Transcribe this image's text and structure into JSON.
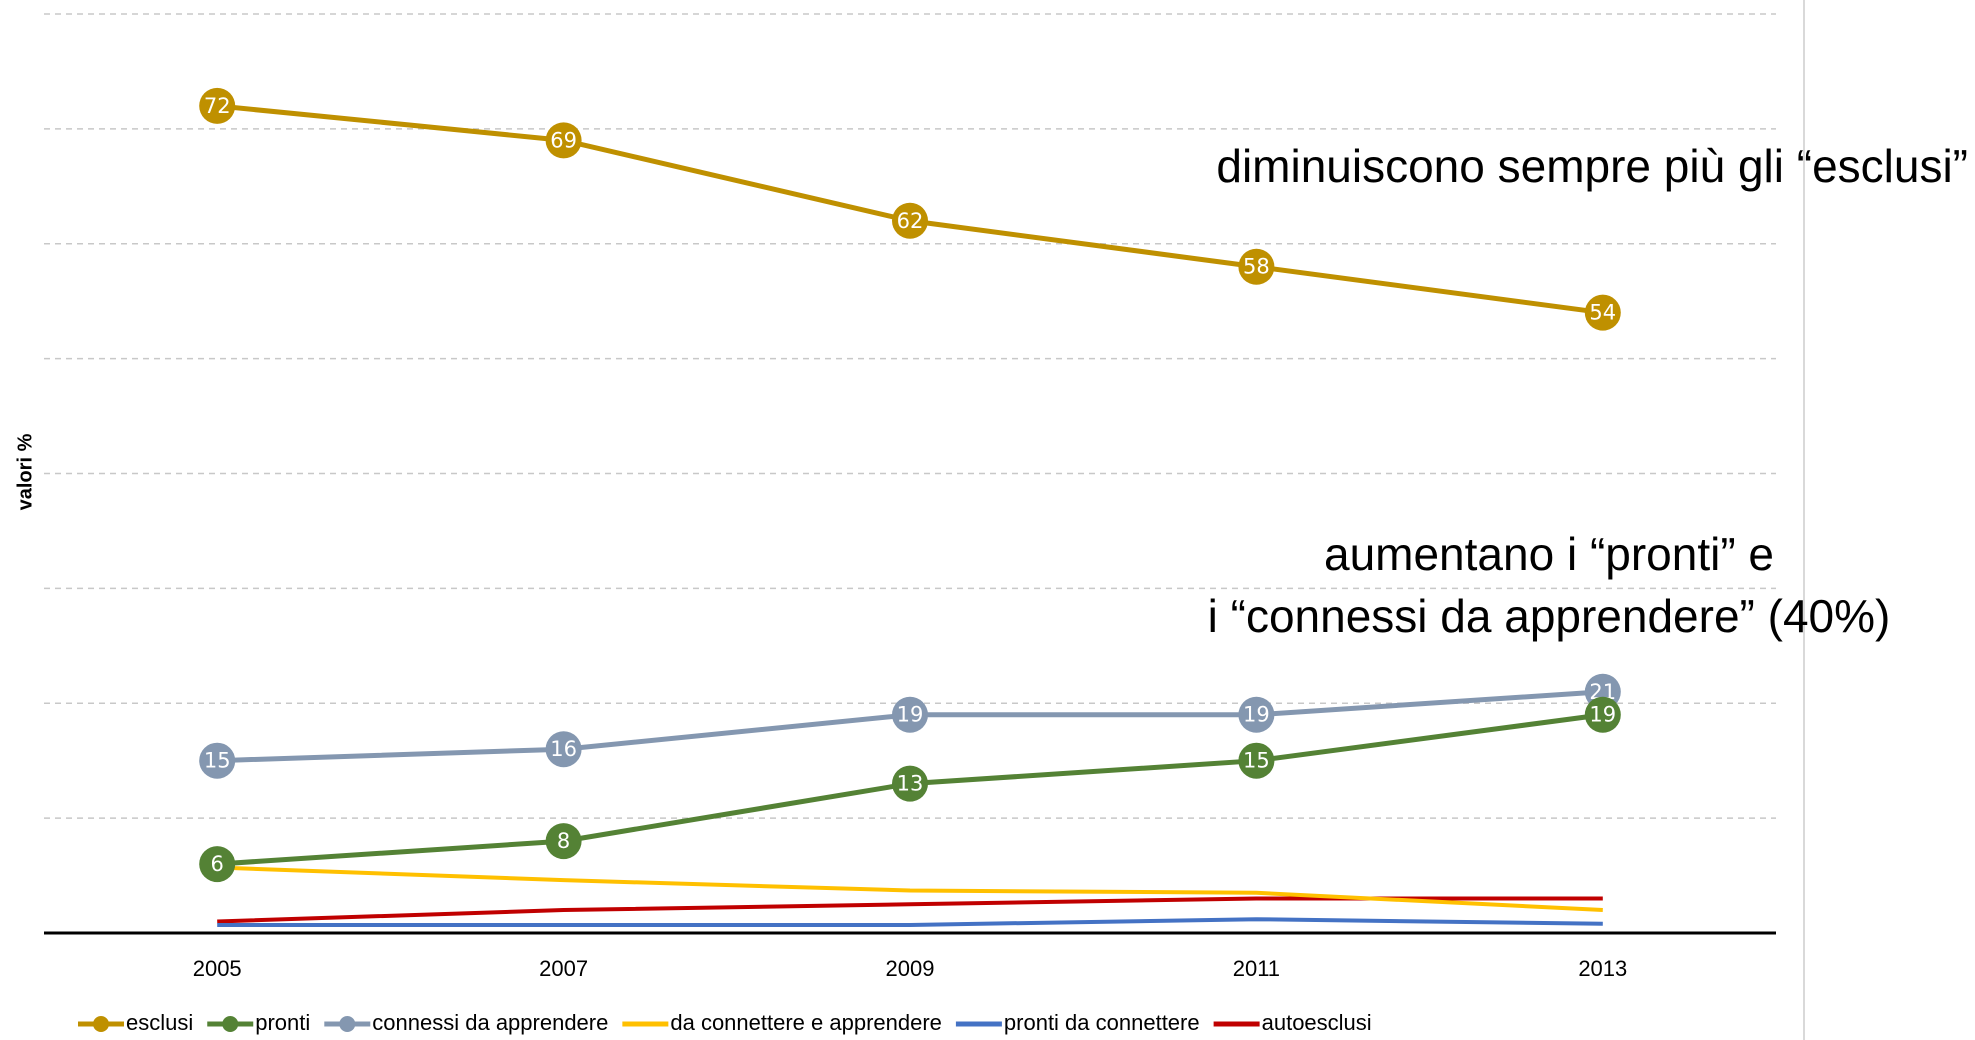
{
  "chart_data": {
    "type": "line",
    "y_label": "valori %",
    "x": [
      2005,
      2007,
      2009,
      2011,
      2013
    ],
    "xlim": [
      2004,
      2014
    ],
    "xticks": [
      2005,
      2007,
      2009,
      2011,
      2013
    ],
    "ylim": [
      0,
      80
    ],
    "yticks": [
      0,
      10,
      20,
      30,
      40,
      50,
      60,
      70,
      80
    ],
    "grid": true,
    "legend": "bottom",
    "annotations": [
      "diminuiscono sempre più gli “esclusi”",
      "aumentano i “pronti” e",
      "i “connessi da apprendere” (40%)"
    ],
    "series": [
      {
        "name": "esclusi",
        "color": "#bf9000",
        "marker": true,
        "values": [
          72,
          69,
          62,
          58,
          54
        ]
      },
      {
        "name": "pronti",
        "color": "#548235",
        "marker": true,
        "values": [
          6,
          8,
          13,
          15,
          19
        ]
      },
      {
        "name": "connessi da apprendere",
        "color": "#8497b0",
        "marker": true,
        "values": [
          15,
          16,
          19,
          19,
          21
        ]
      },
      {
        "name": "da connettere e apprendere",
        "color": "#ffc000",
        "marker": false,
        "values": [
          5.7,
          4.6,
          3.7,
          3.5,
          2
        ]
      },
      {
        "name": "pronti da connettere",
        "color": "#4472c4",
        "marker": false,
        "values": [
          0.7,
          0.7,
          0.7,
          1.2,
          0.8
        ]
      },
      {
        "name": "autoesclusi",
        "color": "#c00000",
        "marker": false,
        "values": [
          1,
          2,
          2.5,
          3,
          3
        ]
      }
    ]
  }
}
